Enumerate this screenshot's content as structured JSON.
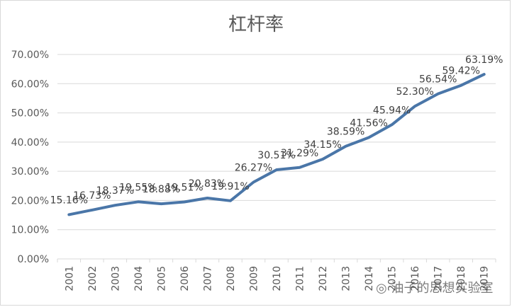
{
  "chart_data": {
    "type": "line",
    "title": "杠杆率",
    "xlabel": "",
    "ylabel": "",
    "categories": [
      "2001",
      "2002",
      "2003",
      "2004",
      "2005",
      "2006",
      "2007",
      "2008",
      "2009",
      "2010",
      "2011",
      "2012",
      "2013",
      "2014",
      "2015",
      "2016",
      "2017",
      "2018",
      "2019"
    ],
    "series": [
      {
        "name": "杠杆率",
        "color": "#4a76a8",
        "values": [
          15.16,
          16.73,
          18.37,
          19.55,
          18.88,
          19.51,
          20.83,
          19.91,
          26.27,
          30.51,
          31.29,
          34.15,
          38.59,
          41.56,
          45.94,
          52.3,
          56.54,
          59.42,
          63.19
        ],
        "labels": [
          "15.16%",
          "16.73%",
          "18.37%",
          "19.55%",
          "18.88%",
          "19.51%",
          "20.83%",
          "19.91%",
          "26.27%",
          "30.51%",
          "31.29%",
          "34.15%",
          "38.59%",
          "41.56%",
          "45.94%",
          "52.30%",
          "56.54%",
          "59.42%",
          "63.19%"
        ]
      }
    ],
    "ylim": [
      0,
      70
    ],
    "yticks": [
      "0.00%",
      "10.00%",
      "20.00%",
      "30.00%",
      "40.00%",
      "50.00%",
      "60.00%",
      "70.00%"
    ],
    "grid": true,
    "legend": "none"
  },
  "watermark": "油子的思想实验室",
  "watermark_icon": "wechat-icon"
}
